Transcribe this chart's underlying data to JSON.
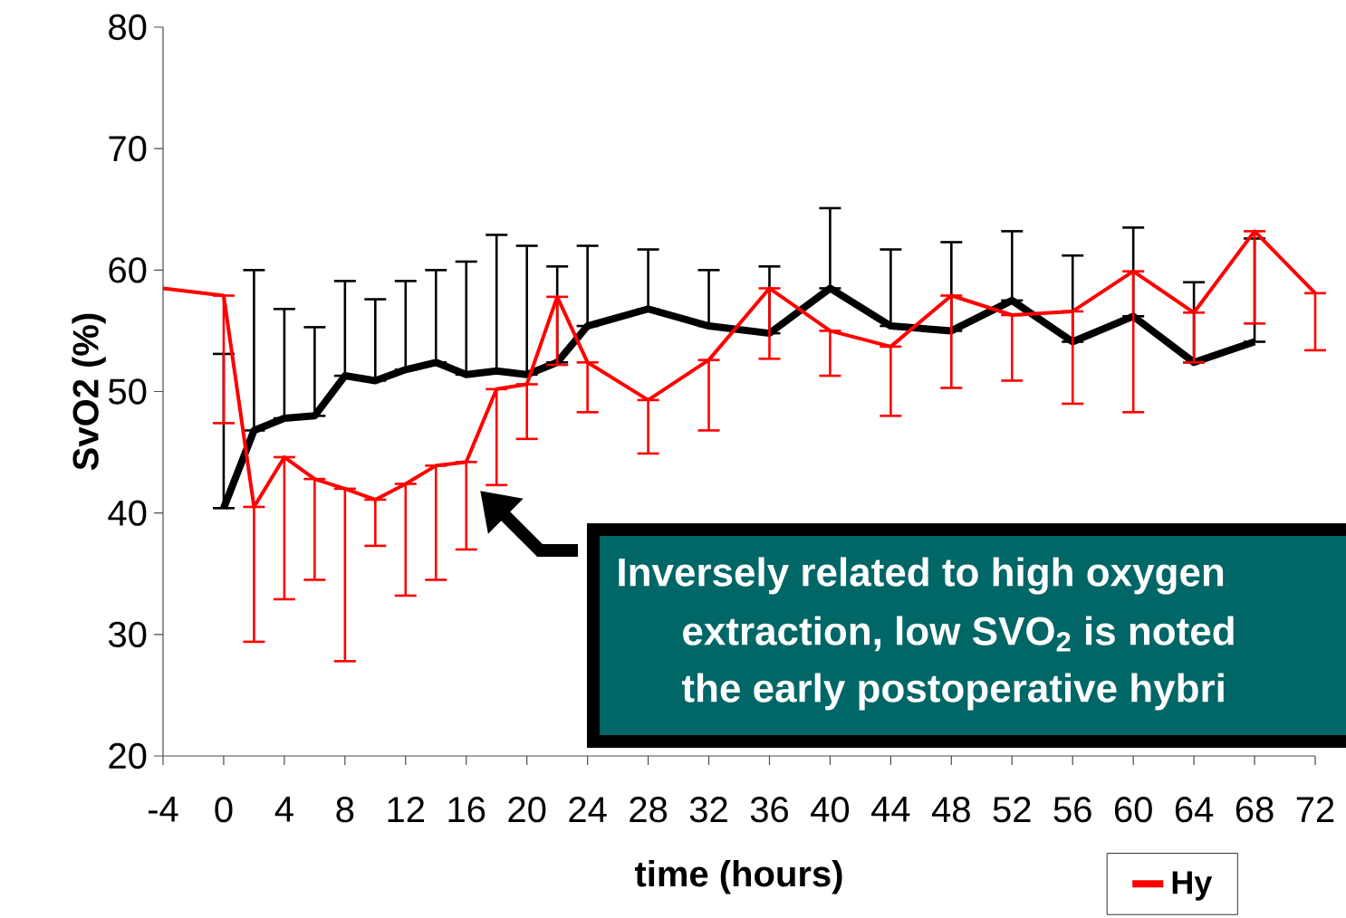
{
  "chart_data": {
    "type": "line",
    "xlabel": "time (hours)",
    "ylabel": "SvO2 (%)",
    "xlim": [
      -4,
      72
    ],
    "xticks": [
      -4,
      0,
      4,
      8,
      12,
      16,
      20,
      24,
      28,
      32,
      36,
      40,
      44,
      48,
      52,
      56,
      60,
      64,
      68,
      72
    ],
    "ylim": [
      20,
      80
    ],
    "yticks": [
      20,
      30,
      40,
      50,
      60,
      70,
      80
    ],
    "grid": false,
    "legend": "bottom right",
    "series": [
      {
        "color": "#000000",
        "x": [
          0,
          2,
          4,
          6,
          8,
          10,
          12,
          14,
          16,
          18,
          20,
          22,
          24,
          28,
          32,
          36,
          40,
          44,
          48,
          52,
          56,
          60,
          64,
          68
        ],
        "values": [
          40.4,
          46.8,
          47.8,
          48.0,
          51.3,
          50.9,
          51.8,
          52.4,
          51.4,
          51.7,
          51.4,
          52.4,
          55.4,
          56.8,
          55.4,
          54.8,
          58.5,
          55.4,
          55.0,
          57.5,
          54.1,
          56.2,
          52.4,
          54.1
        ],
        "errors": [
          [
            40.4,
            53.1
          ],
          [
            46.8,
            60.0
          ],
          [
            47.8,
            56.8
          ],
          [
            48.0,
            55.3
          ],
          [
            51.3,
            59.1
          ],
          [
            50.9,
            57.6
          ],
          [
            51.8,
            59.1
          ],
          [
            52.4,
            60.0
          ],
          [
            51.4,
            60.7
          ],
          [
            51.7,
            62.9
          ],
          [
            51.4,
            62.0
          ],
          [
            52.4,
            60.3
          ],
          [
            55.4,
            62.0
          ],
          [
            56.8,
            61.7
          ],
          [
            55.4,
            60.0
          ],
          [
            54.8,
            60.3
          ],
          [
            58.5,
            65.1
          ],
          [
            55.4,
            61.7
          ],
          [
            55.0,
            62.3
          ],
          [
            57.5,
            63.2
          ],
          [
            54.1,
            61.2
          ],
          [
            56.2,
            63.5
          ],
          [
            52.4,
            59.0
          ],
          [
            54.1,
            62.6
          ]
        ]
      },
      {
        "name": "Hy",
        "color": "#ff0000",
        "x": [
          -4,
          0,
          2,
          4,
          6,
          8,
          10,
          12,
          14,
          16,
          18,
          20,
          22,
          24,
          28,
          32,
          36,
          40,
          44,
          48,
          52,
          56,
          60,
          64,
          68,
          72
        ],
        "values": [
          58.5,
          57.9,
          40.5,
          44.6,
          42.8,
          42.0,
          41.1,
          42.4,
          43.9,
          44.2,
          50.2,
          50.6,
          57.8,
          52.4,
          49.3,
          52.6,
          58.5,
          55.0,
          53.7,
          57.9,
          56.3,
          56.6,
          59.9,
          56.5,
          63.2,
          58.1
        ],
        "errors": [
          null,
          [
            47.4,
            57.9
          ],
          [
            29.4,
            40.5
          ],
          [
            32.9,
            44.6
          ],
          [
            34.5,
            42.8
          ],
          [
            27.8,
            42.0
          ],
          [
            37.3,
            41.1
          ],
          [
            33.2,
            42.4
          ],
          [
            34.5,
            43.9
          ],
          [
            37.0,
            44.2
          ],
          [
            42.3,
            50.2
          ],
          [
            46.1,
            50.6
          ],
          [
            52.2,
            57.8
          ],
          [
            48.3,
            52.4
          ],
          [
            44.9,
            49.3
          ],
          [
            46.8,
            52.6
          ],
          [
            52.7,
            58.5
          ],
          [
            51.3,
            55.0
          ],
          [
            48.0,
            53.7
          ],
          [
            50.3,
            57.9
          ],
          [
            50.9,
            56.3
          ],
          [
            49.0,
            56.6
          ],
          [
            48.3,
            59.9
          ],
          [
            52.4,
            56.5
          ],
          [
            55.6,
            63.2
          ],
          [
            53.4,
            58.1
          ]
        ]
      }
    ],
    "annotations": [
      "Inversely related to high oxygen",
      "extraction, low SVO$_{2}$ is noted",
      "the early postoperative hybri"
    ]
  }
}
